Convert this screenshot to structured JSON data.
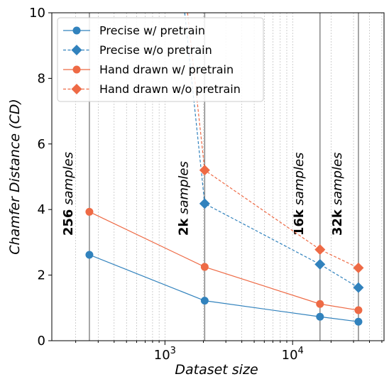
{
  "chart_data": {
    "type": "line",
    "xlabel": "Dataset size",
    "ylabel": "Chamfer Distance (CD)",
    "xscale": "log",
    "xlim": [
      130,
      52000
    ],
    "ylim": [
      0,
      10
    ],
    "yticks": [
      "0",
      "2",
      "4",
      "6",
      "8",
      "10"
    ],
    "xticks": [
      {
        "value": 1000,
        "base": "10",
        "exp": "3"
      },
      {
        "value": 10000,
        "base": "10",
        "exp": "4"
      }
    ],
    "grid": "vertical minor dashed gridlines on log x-axis",
    "legend_position": "top-left",
    "vlines": [
      256,
      2048,
      16384,
      32768
    ],
    "annotations": [
      {
        "bold": "256",
        "rest": " samples"
      },
      {
        "bold": "2k",
        "rest": " samples"
      },
      {
        "bold": "16k",
        "rest": " samples"
      },
      {
        "bold": "32k",
        "rest": " samples"
      }
    ],
    "series": [
      {
        "name": "Precise w/ pretrain",
        "color": "#3182bd",
        "linestyle": "solid",
        "marker": "circle",
        "x": [
          256,
          2048,
          16384,
          32768
        ],
        "y": [
          2.62,
          1.22,
          0.73,
          0.58
        ]
      },
      {
        "name": "Precise w/o pretrain",
        "color": "#3182bd",
        "linestyle": "dashed",
        "marker": "diamond",
        "x": [
          2048,
          16384,
          32768
        ],
        "y": [
          4.18,
          2.33,
          1.62
        ],
        "extends_above_ylim_toward": {
          "x": 1150,
          "y": 13.5
        }
      },
      {
        "name": "Hand drawn w/ pretrain",
        "color": "#ee6a45",
        "linestyle": "solid",
        "marker": "circle",
        "x": [
          256,
          2048,
          16384,
          32768
        ],
        "y": [
          3.93,
          2.25,
          1.12,
          0.93
        ]
      },
      {
        "name": "Hand drawn w/o pretrain",
        "color": "#ee6a45",
        "linestyle": "dashed",
        "marker": "diamond",
        "x": [
          2048,
          16384,
          32768
        ],
        "y": [
          5.2,
          2.78,
          2.22
        ],
        "extends_above_ylim_toward": {
          "x": 1200,
          "y": 13.5
        }
      }
    ]
  }
}
